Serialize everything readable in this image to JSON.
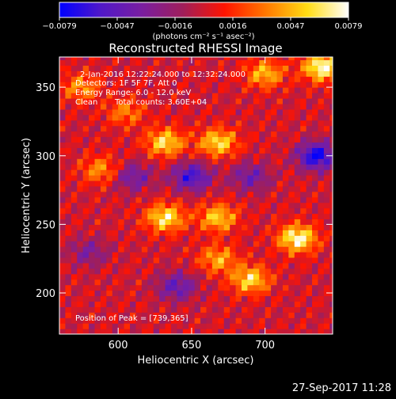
{
  "chart_data": {
    "type": "heatmap",
    "title": "Reconstructed RHESSI Image",
    "xlabel": "Heliocentric X (arcsec)",
    "ylabel": "Heliocentric Y (arcsec)",
    "xlim": [
      560,
      746
    ],
    "ylim": [
      170,
      372
    ],
    "x_ticks": [
      600,
      650,
      700
    ],
    "y_ticks": [
      200,
      250,
      300,
      350
    ],
    "colorbar": {
      "ticks": [
        "−0.0079",
        "−0.0047",
        "−0.0016",
        "0.0016",
        "0.0047",
        "0.0079"
      ],
      "unit_label": "(photons cm⁻² s⁻¹ asec⁻²)",
      "min": -0.0079,
      "max": 0.0079,
      "colors": [
        "#0000ff",
        "#5018c8",
        "#7a1ea0",
        "#a01e5a",
        "#ff1400",
        "#ff7800",
        "#ffdc14",
        "#ffffff"
      ]
    },
    "annotations": {
      "time": "2-Jan-2016 12:22:24.000 to 12:32:24.000",
      "detectors": "Detectors: 1F 5F 7F, Att 0",
      "energy": "Energy Range: 6.0 - 12.0 keV",
      "clean": "Clean",
      "counts": "Total counts: 3.60E+04",
      "peak": "Position of Peak = [739,365]"
    },
    "peak": [
      739,
      365
    ],
    "sources": [
      {
        "x": 632,
        "y": 310,
        "v": 0.006
      },
      {
        "x": 668,
        "y": 310,
        "v": 0.006
      },
      {
        "x": 605,
        "y": 332,
        "v": 0.0035
      },
      {
        "x": 588,
        "y": 290,
        "v": 0.004
      },
      {
        "x": 632,
        "y": 255,
        "v": 0.0065
      },
      {
        "x": 668,
        "y": 255,
        "v": 0.0055
      },
      {
        "x": 722,
        "y": 240,
        "v": 0.0075
      },
      {
        "x": 690,
        "y": 210,
        "v": 0.006
      },
      {
        "x": 668,
        "y": 225,
        "v": 0.0045
      },
      {
        "x": 739,
        "y": 365,
        "v": 0.0079
      },
      {
        "x": 700,
        "y": 360,
        "v": 0.005
      },
      {
        "x": 575,
        "y": 350,
        "v": 0.004
      }
    ],
    "negative_regions": [
      {
        "x": 735,
        "y": 300,
        "v": -0.0075
      },
      {
        "x": 650,
        "y": 285,
        "v": -0.006
      },
      {
        "x": 610,
        "y": 285,
        "v": -0.004
      },
      {
        "x": 690,
        "y": 285,
        "v": -0.004
      },
      {
        "x": 640,
        "y": 205,
        "v": -0.0045
      },
      {
        "x": 580,
        "y": 230,
        "v": -0.003
      }
    ]
  },
  "footer": {
    "timestamp": "27-Sep-2017 11:28"
  }
}
